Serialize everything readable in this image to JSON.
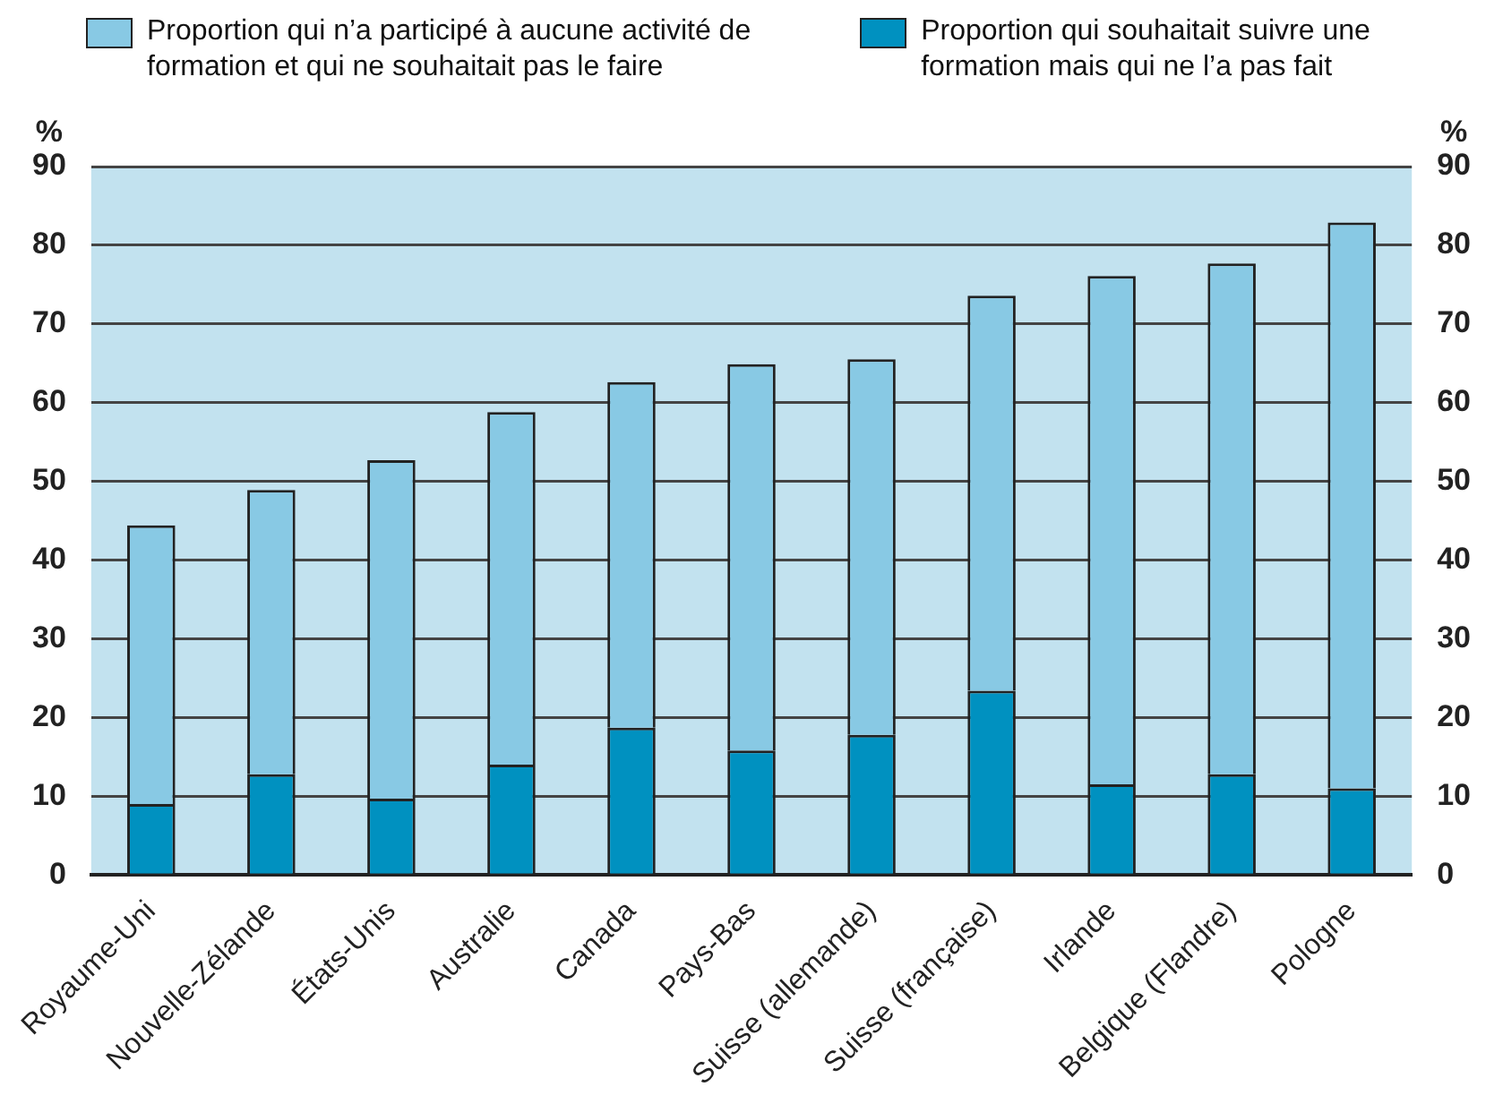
{
  "chart_data": {
    "type": "bar",
    "stacked": true,
    "categories": [
      "Royaume-Uni",
      "Nouvelle-Zélande",
      "États-Unis",
      "Australie",
      "Canada",
      "Pays-Bas",
      "Suisse (allemande)",
      "Suisse (française)",
      "Irlande",
      "Belgique (Flandre)",
      "Pologne"
    ],
    "series": [
      {
        "name": "Proportion qui souhaitait suivre une formation mais qui ne l’a pas fait",
        "color": "#0091c0",
        "values": [
          9.0,
          12.8,
          9.7,
          14.0,
          18.7,
          15.8,
          17.8,
          23.4,
          11.5,
          12.8,
          11.0
        ]
      },
      {
        "name": "Proportion qui n’a participé à aucune activité de formation et qui ne souhaitait pas le faire",
        "color": "#88c9e4",
        "values": [
          35.4,
          36.1,
          43.0,
          44.8,
          43.9,
          49.1,
          47.7,
          50.2,
          64.6,
          64.9,
          71.9
        ]
      }
    ],
    "ylabel": "%",
    "y2label": "%",
    "ylim": [
      0,
      90
    ],
    "yticks": [
      0,
      10,
      20,
      30,
      40,
      50,
      60,
      70,
      80,
      90
    ],
    "y2lim": [
      0,
      90
    ],
    "y2ticks": [
      0,
      10,
      20,
      30,
      40,
      50,
      60,
      70,
      80,
      90
    ],
    "grid": "y",
    "legend": "top"
  }
}
